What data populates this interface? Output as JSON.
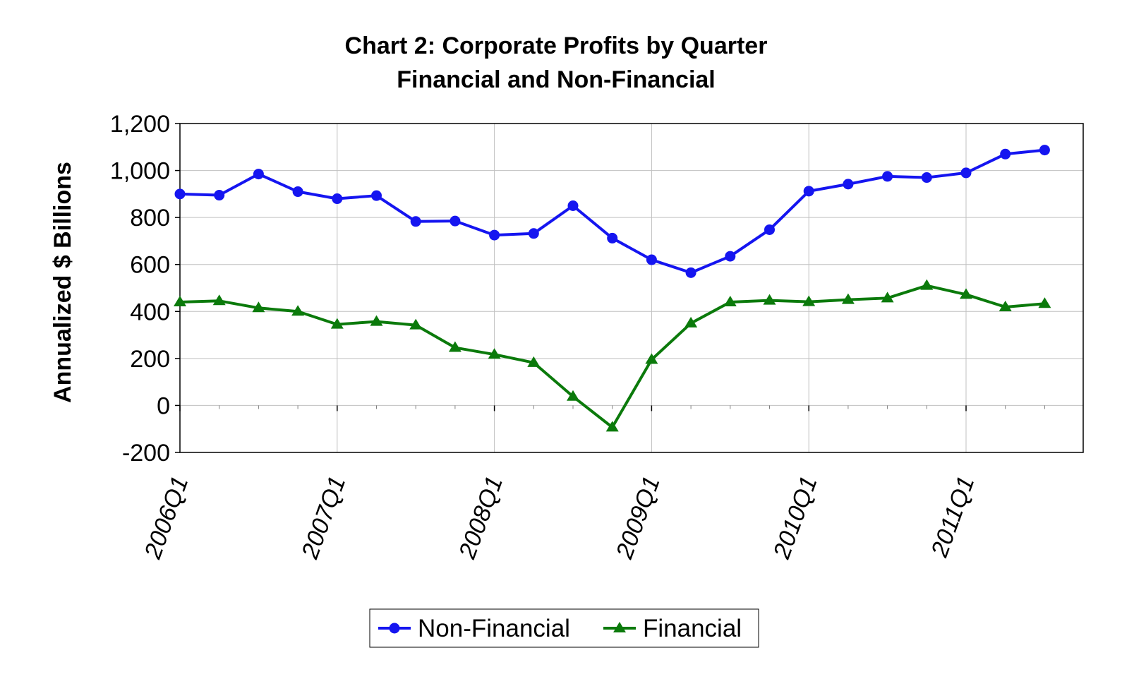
{
  "chart_data": {
    "type": "line",
    "title": "Chart 2:  Corporate Profits by Quarter",
    "subtitle": "Financial and Non-Financial",
    "xlabel": "",
    "ylabel": "Annualized $ Billions",
    "ylim": [
      -200,
      1200
    ],
    "y_ticks": [
      -200,
      0,
      200,
      400,
      600,
      800,
      1000,
      1200
    ],
    "y_tick_labels": [
      "-200",
      "0",
      "200",
      "400",
      "600",
      "800",
      "1,000",
      "1,200"
    ],
    "grid": true,
    "legend_position": "bottom",
    "categories": [
      "2006Q1",
      "2006Q2",
      "2006Q3",
      "2006Q4",
      "2007Q1",
      "2007Q2",
      "2007Q3",
      "2007Q4",
      "2008Q1",
      "2008Q2",
      "2008Q3",
      "2008Q4",
      "2009Q1",
      "2009Q2",
      "2009Q3",
      "2009Q4",
      "2010Q1",
      "2010Q2",
      "2010Q3",
      "2010Q4",
      "2011Q1",
      "2011Q2",
      "2011Q3"
    ],
    "x_tick_labels": [
      "2006Q1",
      "2007Q1",
      "2008Q1",
      "2009Q1",
      "2010Q1",
      "2011Q1"
    ],
    "series": [
      {
        "name": "Non-Financial",
        "color": "#1515f0",
        "marker": "circle",
        "values": [
          900,
          895,
          985,
          910,
          880,
          893,
          783,
          785,
          725,
          732,
          850,
          712,
          620,
          565,
          635,
          748,
          912,
          942,
          975,
          970,
          990,
          1070,
          1087
        ]
      },
      {
        "name": "Financial",
        "color": "#0b7a0b",
        "marker": "triangle",
        "values": [
          440,
          445,
          415,
          400,
          345,
          357,
          342,
          246,
          217,
          182,
          38,
          -93,
          195,
          350,
          440,
          447,
          441,
          450,
          457,
          510,
          472,
          419,
          433
        ]
      }
    ]
  }
}
